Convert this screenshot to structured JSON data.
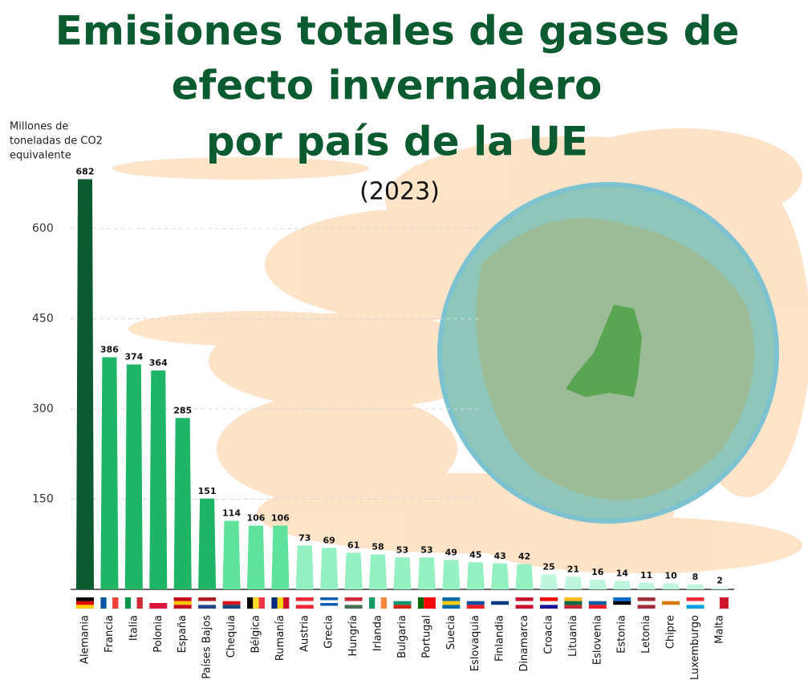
{
  "chart_data": {
    "type": "bar",
    "title": [
      "Emisiones totales de gases de",
      "efecto invernadero",
      "por país de la UE"
    ],
    "subtitle": "(2023)",
    "y_label": [
      "Millones de",
      "toneladas de CO2",
      "equivalente"
    ],
    "categories": [
      "Alemania",
      "Francia",
      "Italia",
      "Polonia",
      "España",
      "Países Bajos",
      "Chequia",
      "Bélgica",
      "Rumanía",
      "Austria",
      "Grecia",
      "Hungría",
      "Irlanda",
      "Bulgaria",
      "Portugal",
      "Suecia",
      "Eslovaquia",
      "Finlandia",
      "Dinamarca",
      "Croacia",
      "Lituania",
      "Eslovenia",
      "Estonia",
      "Letonia",
      "Chipre",
      "Luxemburgo",
      "Malta"
    ],
    "values": [
      682,
      386,
      374,
      364,
      285,
      151,
      114,
      106,
      106,
      73,
      69,
      61,
      58,
      53,
      53,
      49,
      45,
      43,
      42,
      25,
      21,
      16,
      14,
      11,
      10,
      8,
      2
    ],
    "colors": [
      "#0b5a30",
      "#1fb566",
      "#1fb566",
      "#1fb566",
      "#1fb566",
      "#1fb566",
      "#5fe39c",
      "#5fe39c",
      "#5fe39c",
      "#93f0c0",
      "#93f0c0",
      "#93f0c0",
      "#93f0c0",
      "#93f0c0",
      "#93f0c0",
      "#93f0c0",
      "#93f0c0",
      "#93f0c0",
      "#93f0c0",
      "#bdf6dc",
      "#bdf6dc",
      "#bdf6dc",
      "#bdf6dc",
      "#bdf6dc",
      "#bdf6dc",
      "#bdf6dc",
      "#bdf6dc"
    ],
    "ylim": [
      0,
      700
    ],
    "yticks": [
      150,
      300,
      450,
      600
    ],
    "grid": true
  }
}
